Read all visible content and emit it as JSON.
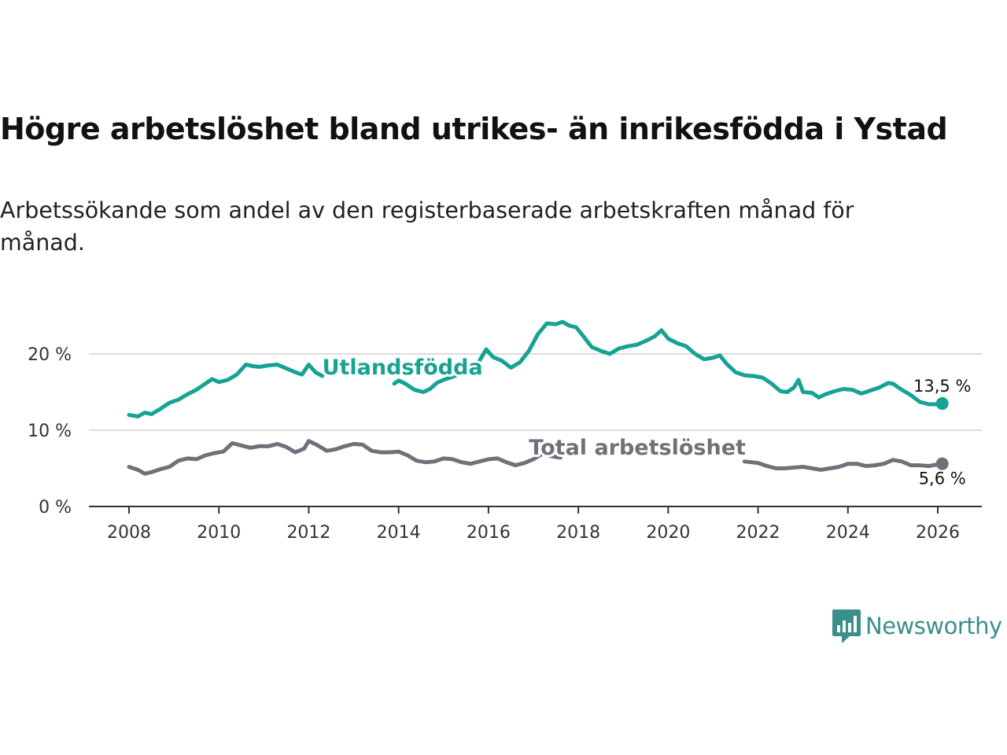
{
  "title": "Högre arbetslöshet bland utrikes- än inrikesfödda i Ystad",
  "subtitle": "Arbetssökande som andel av den registerbaserade arbetskraften månad för månad.",
  "logo": {
    "text": "Newsworthy",
    "icon": "chart-bubble-icon"
  },
  "colors": {
    "foreign": "#16a393",
    "total": "#71707a",
    "grid": "#dddddd",
    "axis": "#333333"
  },
  "chart_data": {
    "type": "line",
    "title": "Högre arbetslöshet bland utrikes- än inrikesfödda i Ystad",
    "xlabel": "",
    "ylabel": "",
    "xlim": [
      2007.7,
      2026.7
    ],
    "ylim": [
      0,
      25
    ],
    "y_ticks": [
      0,
      10,
      20
    ],
    "y_tick_labels": [
      "0 %",
      "10 %",
      "20 %"
    ],
    "x_ticks": [
      2008,
      2010,
      2012,
      2014,
      2016,
      2018,
      2020,
      2022,
      2024,
      2026
    ],
    "x_tick_labels": [
      "2008",
      "2010",
      "2012",
      "2014",
      "2016",
      "2018",
      "2020",
      "2022",
      "2024",
      "2026"
    ],
    "grid": true,
    "series": [
      {
        "name": "Utlandsfödda",
        "label_at": [
          2012.3,
          17.3
        ],
        "end_label": "13,5 %",
        "end_value": 13.5,
        "points": [
          [
            2008.0,
            12.0
          ],
          [
            2008.2,
            11.8
          ],
          [
            2008.35,
            12.3
          ],
          [
            2008.5,
            12.1
          ],
          [
            2008.7,
            12.8
          ],
          [
            2008.9,
            13.6
          ],
          [
            2009.1,
            14.0
          ],
          [
            2009.3,
            14.7
          ],
          [
            2009.5,
            15.3
          ],
          [
            2009.7,
            16.1
          ],
          [
            2009.85,
            16.7
          ],
          [
            2010.0,
            16.3
          ],
          [
            2010.2,
            16.6
          ],
          [
            2010.4,
            17.3
          ],
          [
            2010.6,
            18.6
          ],
          [
            2010.75,
            18.4
          ],
          [
            2010.9,
            18.3
          ],
          [
            2011.1,
            18.5
          ],
          [
            2011.3,
            18.6
          ],
          [
            2011.5,
            18.1
          ],
          [
            2011.7,
            17.6
          ],
          [
            2011.85,
            17.3
          ],
          [
            2012.0,
            18.6
          ],
          [
            2012.15,
            17.6
          ],
          [
            2012.3,
            17.1
          ],
          [
            2013.9,
            16.1
          ],
          [
            2014.0,
            16.5
          ],
          [
            2014.15,
            16.1
          ],
          [
            2014.35,
            15.3
          ],
          [
            2014.55,
            15.0
          ],
          [
            2014.7,
            15.4
          ],
          [
            2014.85,
            16.2
          ],
          [
            2015.0,
            16.6
          ],
          [
            2015.2,
            17.0
          ],
          [
            2015.4,
            17.5
          ],
          [
            2015.6,
            18.2
          ],
          [
            2015.8,
            19.1
          ],
          [
            2015.95,
            20.6
          ],
          [
            2016.1,
            19.6
          ],
          [
            2016.3,
            19.1
          ],
          [
            2016.5,
            18.2
          ],
          [
            2016.7,
            18.9
          ],
          [
            2016.9,
            20.4
          ],
          [
            2017.1,
            22.6
          ],
          [
            2017.3,
            24.0
          ],
          [
            2017.5,
            23.9
          ],
          [
            2017.65,
            24.2
          ],
          [
            2017.8,
            23.7
          ],
          [
            2017.95,
            23.5
          ],
          [
            2018.1,
            22.4
          ],
          [
            2018.3,
            20.9
          ],
          [
            2018.5,
            20.4
          ],
          [
            2018.7,
            20.0
          ],
          [
            2018.9,
            20.7
          ],
          [
            2019.1,
            21.0
          ],
          [
            2019.3,
            21.2
          ],
          [
            2019.5,
            21.7
          ],
          [
            2019.7,
            22.3
          ],
          [
            2019.85,
            23.1
          ],
          [
            2020.0,
            22.0
          ],
          [
            2020.2,
            21.4
          ],
          [
            2020.4,
            21.0
          ],
          [
            2020.6,
            20.0
          ],
          [
            2020.8,
            19.3
          ],
          [
            2021.0,
            19.5
          ],
          [
            2021.15,
            19.8
          ],
          [
            2021.3,
            18.7
          ],
          [
            2021.5,
            17.6
          ],
          [
            2021.7,
            17.2
          ],
          [
            2021.9,
            17.1
          ],
          [
            2022.1,
            16.9
          ],
          [
            2022.3,
            16.1
          ],
          [
            2022.5,
            15.1
          ],
          [
            2022.65,
            15.0
          ],
          [
            2022.8,
            15.6
          ],
          [
            2022.9,
            16.6
          ],
          [
            2023.0,
            15.0
          ],
          [
            2023.2,
            14.9
          ],
          [
            2023.35,
            14.3
          ],
          [
            2023.5,
            14.7
          ],
          [
            2023.7,
            15.1
          ],
          [
            2023.9,
            15.4
          ],
          [
            2024.1,
            15.3
          ],
          [
            2024.3,
            14.8
          ],
          [
            2024.5,
            15.2
          ],
          [
            2024.7,
            15.6
          ],
          [
            2024.9,
            16.2
          ],
          [
            2025.0,
            16.1
          ],
          [
            2025.2,
            15.3
          ],
          [
            2025.4,
            14.6
          ],
          [
            2025.6,
            13.7
          ],
          [
            2025.8,
            13.4
          ],
          [
            2026.0,
            13.4
          ],
          [
            2026.1,
            13.5
          ]
        ]
      },
      {
        "name": "Total arbetslöshet",
        "label_at": [
          2016.9,
          6.8
        ],
        "end_label": "5,6 %",
        "end_value": 5.6,
        "points": [
          [
            2008.0,
            5.2
          ],
          [
            2008.2,
            4.8
          ],
          [
            2008.35,
            4.3
          ],
          [
            2008.5,
            4.5
          ],
          [
            2008.7,
            4.9
          ],
          [
            2008.9,
            5.2
          ],
          [
            2009.1,
            6.0
          ],
          [
            2009.3,
            6.3
          ],
          [
            2009.5,
            6.2
          ],
          [
            2009.7,
            6.7
          ],
          [
            2009.9,
            7.0
          ],
          [
            2010.1,
            7.2
          ],
          [
            2010.3,
            8.3
          ],
          [
            2010.5,
            8.0
          ],
          [
            2010.7,
            7.7
          ],
          [
            2010.9,
            7.9
          ],
          [
            2011.1,
            7.9
          ],
          [
            2011.3,
            8.2
          ],
          [
            2011.5,
            7.8
          ],
          [
            2011.7,
            7.1
          ],
          [
            2011.9,
            7.6
          ],
          [
            2012.0,
            8.6
          ],
          [
            2012.2,
            8.0
          ],
          [
            2012.4,
            7.3
          ],
          [
            2012.6,
            7.5
          ],
          [
            2012.8,
            7.9
          ],
          [
            2013.0,
            8.2
          ],
          [
            2013.2,
            8.1
          ],
          [
            2013.4,
            7.3
          ],
          [
            2013.6,
            7.1
          ],
          [
            2013.8,
            7.1
          ],
          [
            2014.0,
            7.2
          ],
          [
            2014.2,
            6.7
          ],
          [
            2014.4,
            6.0
          ],
          [
            2014.6,
            5.8
          ],
          [
            2014.8,
            5.9
          ],
          [
            2015.0,
            6.3
          ],
          [
            2015.2,
            6.2
          ],
          [
            2015.4,
            5.8
          ],
          [
            2015.6,
            5.6
          ],
          [
            2015.8,
            5.9
          ],
          [
            2016.0,
            6.2
          ],
          [
            2016.2,
            6.3
          ],
          [
            2016.4,
            5.8
          ],
          [
            2016.6,
            5.4
          ],
          [
            2016.8,
            5.7
          ],
          [
            2017.0,
            6.2
          ],
          [
            2017.2,
            6.9
          ],
          [
            2017.4,
            6.6
          ],
          [
            2017.6,
            6.4
          ],
          [
            2021.7,
            5.9
          ],
          [
            2021.85,
            5.8
          ],
          [
            2022.0,
            5.7
          ],
          [
            2022.2,
            5.3
          ],
          [
            2022.4,
            5.0
          ],
          [
            2022.6,
            5.0
          ],
          [
            2022.8,
            5.1
          ],
          [
            2023.0,
            5.2
          ],
          [
            2023.2,
            5.0
          ],
          [
            2023.4,
            4.8
          ],
          [
            2023.6,
            5.0
          ],
          [
            2023.8,
            5.2
          ],
          [
            2024.0,
            5.6
          ],
          [
            2024.2,
            5.6
          ],
          [
            2024.4,
            5.3
          ],
          [
            2024.6,
            5.4
          ],
          [
            2024.8,
            5.6
          ],
          [
            2025.0,
            6.1
          ],
          [
            2025.2,
            5.9
          ],
          [
            2025.4,
            5.4
          ],
          [
            2025.6,
            5.4
          ],
          [
            2025.8,
            5.3
          ],
          [
            2026.0,
            5.5
          ],
          [
            2026.1,
            5.6
          ]
        ]
      }
    ]
  }
}
